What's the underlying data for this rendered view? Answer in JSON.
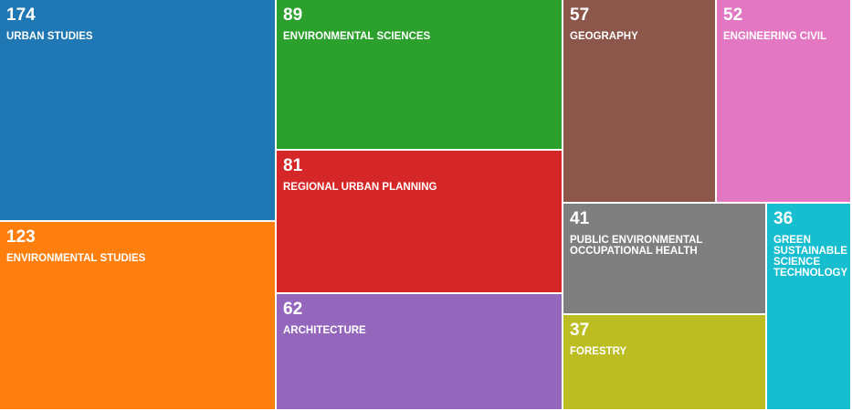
{
  "chart_data": {
    "type": "treemap",
    "items": [
      {
        "label": "URBAN STUDIES",
        "value": 174,
        "color": "#1f77b4"
      },
      {
        "label": "ENVIRONMENTAL STUDIES",
        "value": 123,
        "color": "#ff7f0e"
      },
      {
        "label": "ENVIRONMENTAL SCIENCES",
        "value": 89,
        "color": "#2ca02c"
      },
      {
        "label": "REGIONAL URBAN PLANNING",
        "value": 81,
        "color": "#d62728"
      },
      {
        "label": "ARCHITECTURE",
        "value": 62,
        "color": "#9467bd"
      },
      {
        "label": "GEOGRAPHY",
        "value": 57,
        "color": "#8c564b"
      },
      {
        "label": "ENGINEERING CIVIL",
        "value": 52,
        "color": "#e377c2"
      },
      {
        "label": "PUBLIC ENVIRONMENTAL\nOCCUPATIONAL HEALTH",
        "value": 41,
        "color": "#7f7f7f"
      },
      {
        "label": "GREEN\nSUSTAINABLE\nSCIENCE\nTECHNOLOGY",
        "value": 36,
        "color": "#17becf"
      },
      {
        "label": "FORESTRY",
        "value": 37,
        "color": "#bcbd22"
      }
    ]
  }
}
